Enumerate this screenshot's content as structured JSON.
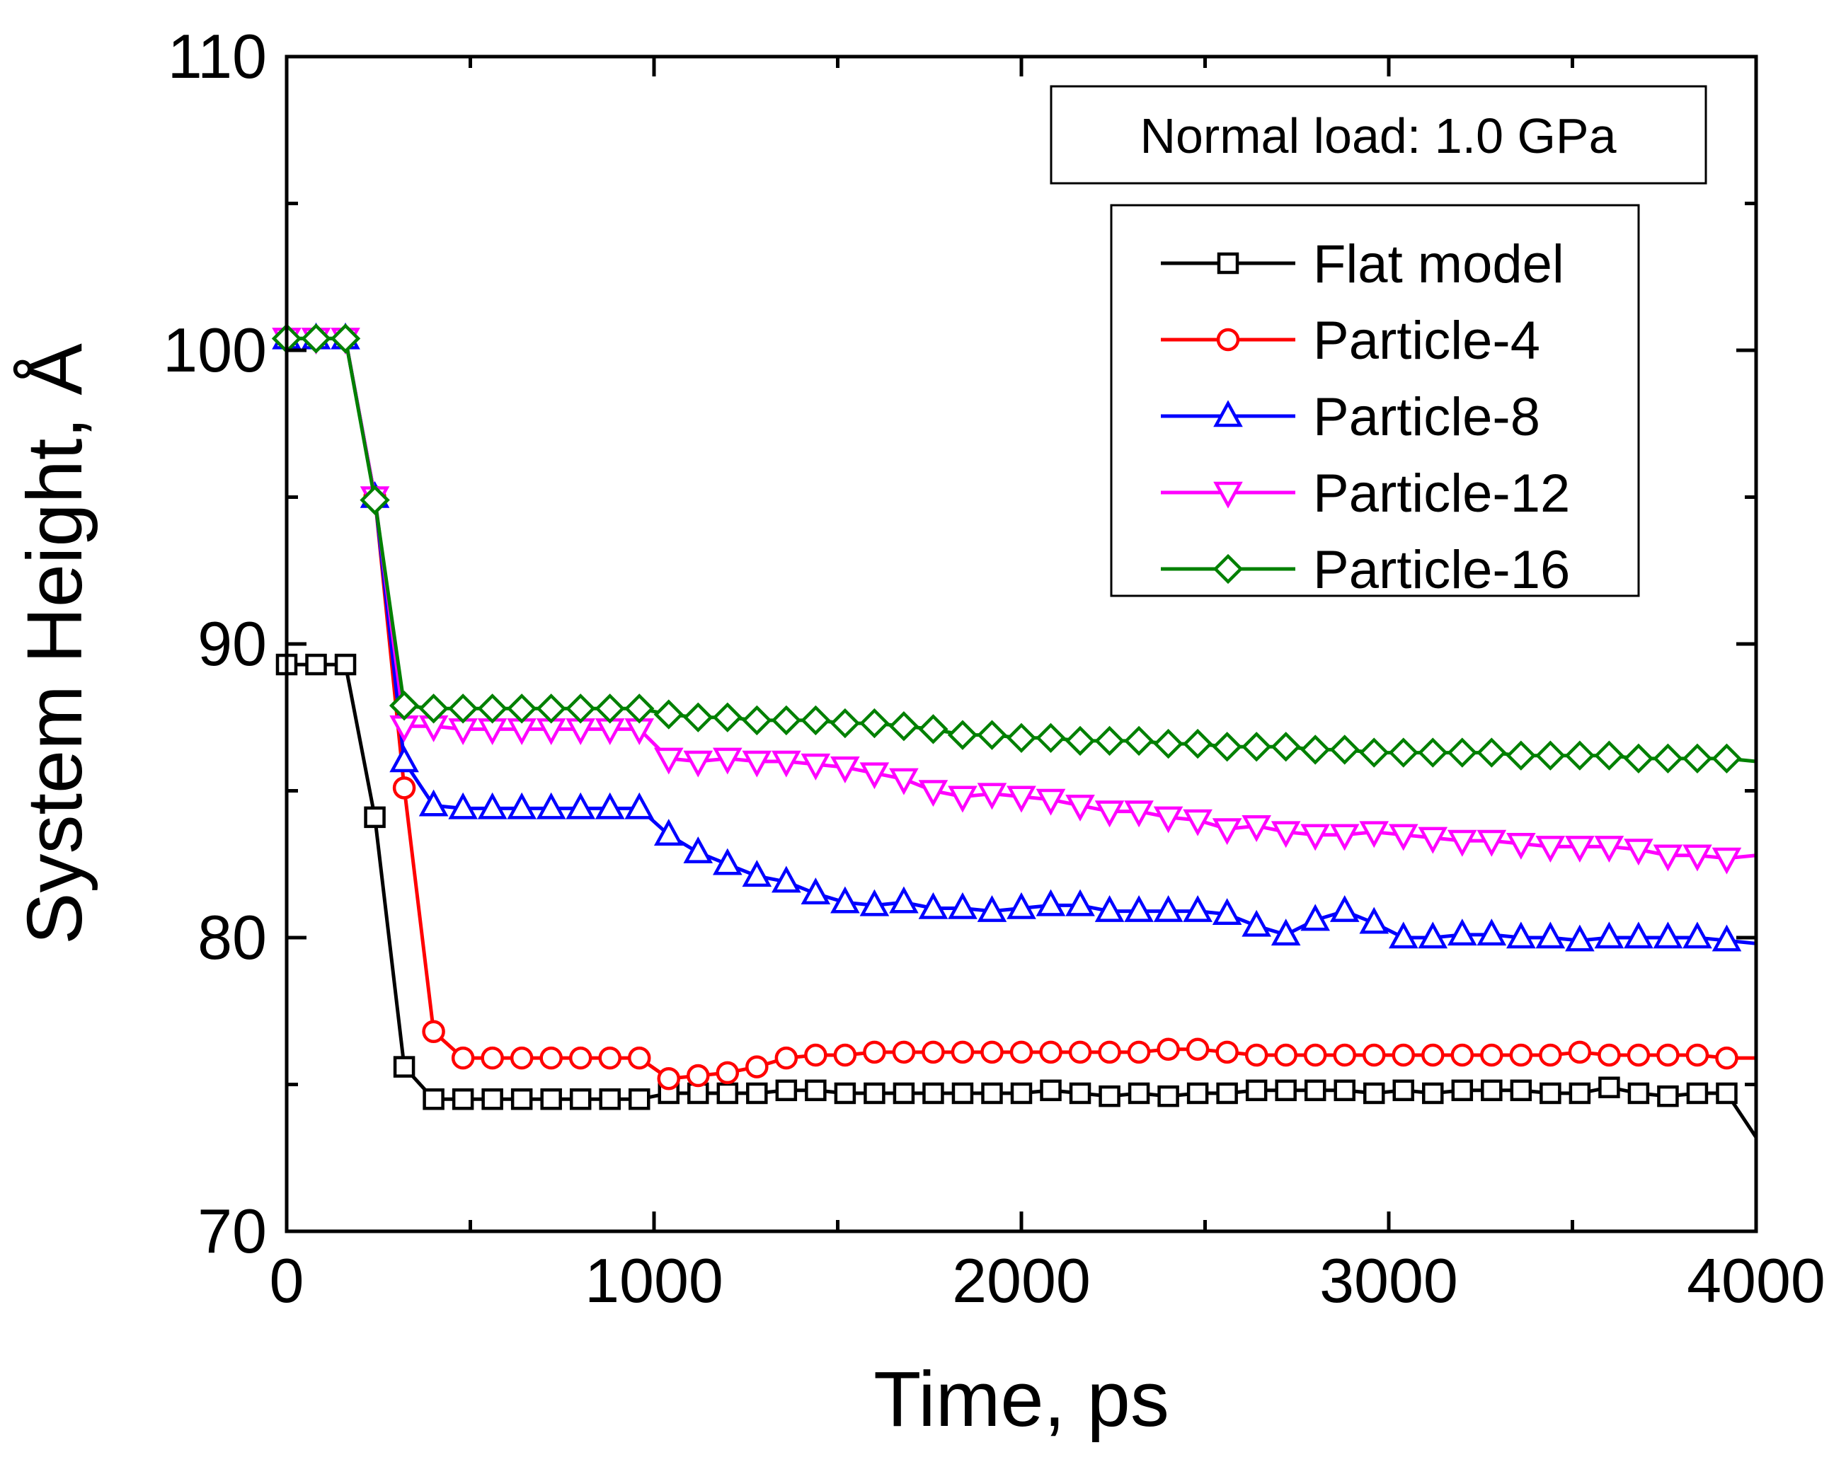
{
  "chart_data": {
    "type": "line",
    "title": "",
    "xlabel": "Time, ps",
    "ylabel": "System Height, Å",
    "xlim": [
      0,
      4000
    ],
    "ylim": [
      70,
      110
    ],
    "xticks": [
      0,
      1000,
      2000,
      3000,
      4000
    ],
    "yticks": [
      70,
      80,
      90,
      100,
      110
    ],
    "grid": false,
    "legend_position": "right",
    "annotation": "Normal load: 1.0 GPa",
    "series": [
      {
        "name": "Flat model",
        "color": "#000000",
        "marker": "square",
        "x": [
          0,
          80,
          160,
          240,
          320,
          400,
          480,
          560,
          640,
          720,
          800,
          880,
          960,
          1040,
          1120,
          1200,
          1280,
          1360,
          1440,
          1520,
          1600,
          1680,
          1760,
          1840,
          1920,
          2000,
          2080,
          2160,
          2240,
          2320,
          2400,
          2480,
          2560,
          2640,
          2720,
          2800,
          2880,
          2960,
          3040,
          3120,
          3200,
          3280,
          3360,
          3440,
          3520,
          3600,
          3680,
          3760,
          3840,
          3920,
          4000
        ],
        "y": [
          89.3,
          89.3,
          89.3,
          84.1,
          75.6,
          74.5,
          74.5,
          74.5,
          74.5,
          74.5,
          74.5,
          74.5,
          74.5,
          74.7,
          74.7,
          74.7,
          74.7,
          74.8,
          74.8,
          74.7,
          74.7,
          74.7,
          74.7,
          74.7,
          74.7,
          74.7,
          74.8,
          74.7,
          74.6,
          74.7,
          74.6,
          74.7,
          74.7,
          74.8,
          74.8,
          74.8,
          74.8,
          74.7,
          74.8,
          74.7,
          74.8,
          74.8,
          74.8,
          74.7,
          74.7,
          74.9,
          74.7,
          74.6,
          74.7,
          74.7,
          73.2
        ]
      },
      {
        "name": "Particle-4",
        "color": "#ff0000",
        "marker": "circle",
        "x": [
          0,
          80,
          160,
          240,
          320,
          400,
          480,
          560,
          640,
          720,
          800,
          880,
          960,
          1040,
          1120,
          1200,
          1280,
          1360,
          1440,
          1520,
          1600,
          1680,
          1760,
          1840,
          1920,
          2000,
          2080,
          2160,
          2240,
          2320,
          2400,
          2480,
          2560,
          2640,
          2720,
          2800,
          2880,
          2960,
          3040,
          3120,
          3200,
          3280,
          3360,
          3440,
          3520,
          3600,
          3680,
          3760,
          3840,
          3920,
          4000
        ],
        "y": [
          100.4,
          100.4,
          100.4,
          95.0,
          85.1,
          76.8,
          75.9,
          75.9,
          75.9,
          75.9,
          75.9,
          75.9,
          75.9,
          75.2,
          75.3,
          75.4,
          75.6,
          75.9,
          76.0,
          76.0,
          76.1,
          76.1,
          76.1,
          76.1,
          76.1,
          76.1,
          76.1,
          76.1,
          76.1,
          76.1,
          76.2,
          76.2,
          76.1,
          76.0,
          76.0,
          76.0,
          76.0,
          76.0,
          76.0,
          76.0,
          76.0,
          76.0,
          76.0,
          76.0,
          76.1,
          76.0,
          76.0,
          76.0,
          76.0,
          75.9,
          75.9
        ]
      },
      {
        "name": "Particle-8",
        "color": "#0000ff",
        "marker": "triangle-up",
        "x": [
          0,
          80,
          160,
          240,
          320,
          400,
          480,
          560,
          640,
          720,
          800,
          880,
          960,
          1040,
          1120,
          1200,
          1280,
          1360,
          1440,
          1520,
          1600,
          1680,
          1760,
          1840,
          1920,
          2000,
          2080,
          2160,
          2240,
          2320,
          2400,
          2480,
          2560,
          2640,
          2720,
          2800,
          2880,
          2960,
          3040,
          3120,
          3200,
          3280,
          3360,
          3440,
          3520,
          3600,
          3680,
          3760,
          3840,
          3920,
          4000
        ],
        "y": [
          100.4,
          100.4,
          100.4,
          95.0,
          86.0,
          84.5,
          84.4,
          84.4,
          84.4,
          84.4,
          84.4,
          84.4,
          84.4,
          83.5,
          82.9,
          82.5,
          82.1,
          81.9,
          81.5,
          81.2,
          81.1,
          81.2,
          81.0,
          81.0,
          80.9,
          81.0,
          81.1,
          81.1,
          80.9,
          80.9,
          80.9,
          80.9,
          80.8,
          80.4,
          80.1,
          80.6,
          80.9,
          80.5,
          80.0,
          80.0,
          80.1,
          80.1,
          80.0,
          80.0,
          79.9,
          80.0,
          80.0,
          80.0,
          80.0,
          79.9,
          79.8
        ]
      },
      {
        "name": "Particle-12",
        "color": "#ff00ff",
        "marker": "triangle-down",
        "x": [
          0,
          80,
          160,
          240,
          320,
          400,
          480,
          560,
          640,
          720,
          800,
          880,
          960,
          1040,
          1120,
          1200,
          1280,
          1360,
          1440,
          1520,
          1600,
          1680,
          1760,
          1840,
          1920,
          2000,
          2080,
          2160,
          2240,
          2320,
          2400,
          2480,
          2560,
          2640,
          2720,
          2800,
          2880,
          2960,
          3040,
          3120,
          3200,
          3280,
          3360,
          3440,
          3520,
          3600,
          3680,
          3760,
          3840,
          3920,
          4000
        ],
        "y": [
          100.4,
          100.4,
          100.4,
          95.0,
          87.2,
          87.2,
          87.1,
          87.1,
          87.1,
          87.1,
          87.1,
          87.1,
          87.1,
          86.1,
          86.0,
          86.1,
          86.0,
          86.0,
          85.9,
          85.8,
          85.6,
          85.4,
          85.0,
          84.8,
          84.9,
          84.8,
          84.7,
          84.5,
          84.3,
          84.3,
          84.1,
          84.0,
          83.7,
          83.8,
          83.6,
          83.5,
          83.5,
          83.6,
          83.5,
          83.4,
          83.3,
          83.3,
          83.2,
          83.1,
          83.1,
          83.1,
          83.0,
          82.8,
          82.8,
          82.7,
          82.8
        ]
      },
      {
        "name": "Particle-16",
        "color": "#008000",
        "marker": "diamond",
        "x": [
          0,
          80,
          160,
          240,
          320,
          400,
          480,
          560,
          640,
          720,
          800,
          880,
          960,
          1040,
          1120,
          1200,
          1280,
          1360,
          1440,
          1520,
          1600,
          1680,
          1760,
          1840,
          1920,
          2000,
          2080,
          2160,
          2240,
          2320,
          2400,
          2480,
          2560,
          2640,
          2720,
          2800,
          2880,
          2960,
          3040,
          3120,
          3200,
          3280,
          3360,
          3440,
          3520,
          3600,
          3680,
          3760,
          3840,
          3920,
          4000
        ],
        "y": [
          100.4,
          100.4,
          100.4,
          94.9,
          87.9,
          87.8,
          87.8,
          87.8,
          87.8,
          87.8,
          87.8,
          87.8,
          87.8,
          87.6,
          87.5,
          87.5,
          87.4,
          87.4,
          87.4,
          87.3,
          87.3,
          87.2,
          87.1,
          86.9,
          86.9,
          86.8,
          86.8,
          86.7,
          86.7,
          86.7,
          86.6,
          86.6,
          86.5,
          86.5,
          86.5,
          86.4,
          86.4,
          86.3,
          86.3,
          86.3,
          86.3,
          86.3,
          86.2,
          86.2,
          86.2,
          86.2,
          86.1,
          86.1,
          86.1,
          86.1,
          86.0
        ]
      }
    ]
  }
}
